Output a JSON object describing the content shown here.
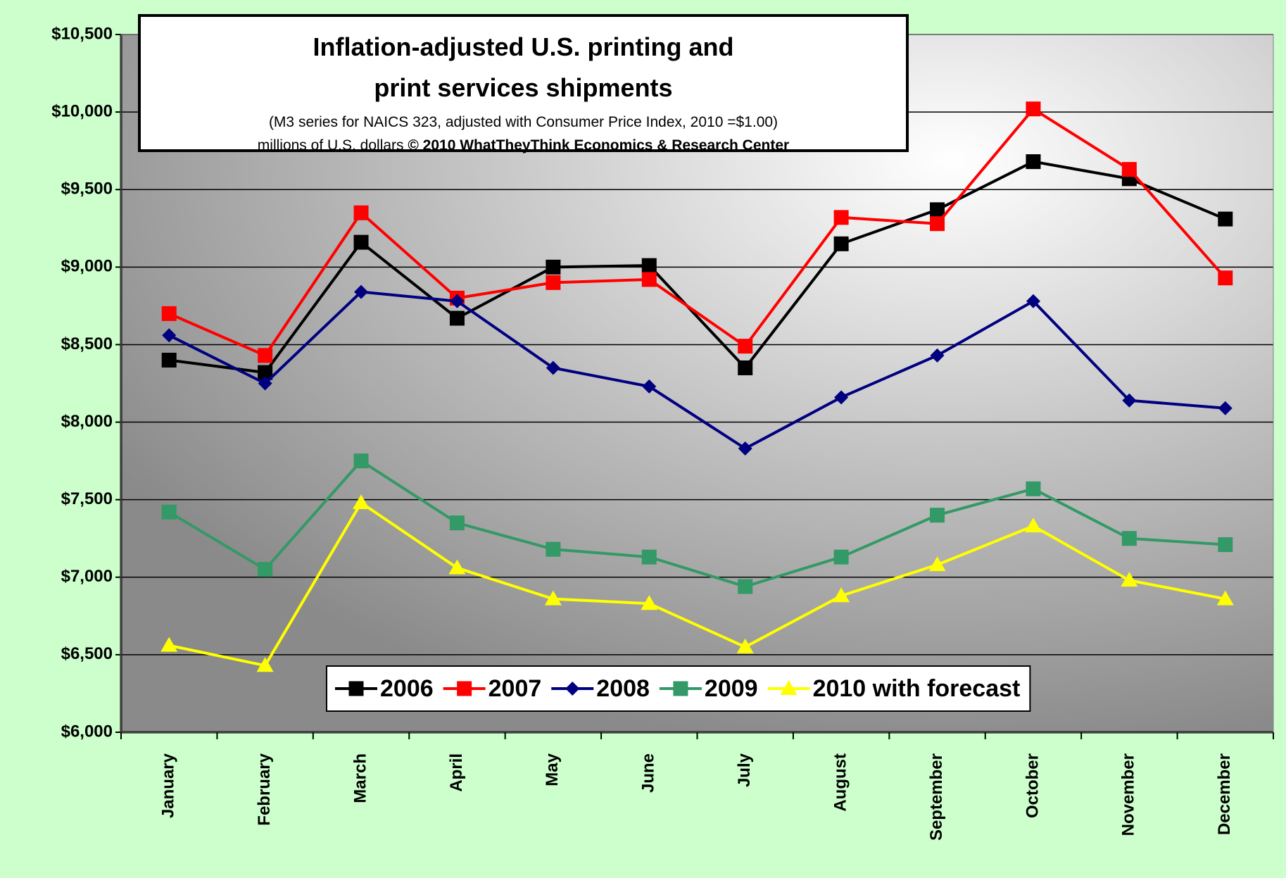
{
  "chart_data": {
    "type": "line",
    "title": "Inflation-adjusted U.S. printing and print services shipments",
    "subtitle": "(M3 series for NAICS 323, adjusted with Consumer Price Index, 2010 =$1.00)",
    "note": "millions of U.S. dollars",
    "source": "© 2010 WhatTheyThink Economics & Research Center",
    "categories": [
      "January",
      "February",
      "March",
      "April",
      "May",
      "June",
      "July",
      "August",
      "September",
      "October",
      "November",
      "December"
    ],
    "series": [
      {
        "name": "2006",
        "color": "#000000",
        "marker": "square",
        "values": [
          8400,
          8320,
          9160,
          8670,
          9000,
          9010,
          8350,
          9150,
          9370,
          9680,
          9570,
          9310
        ]
      },
      {
        "name": "2007",
        "color": "#ff0000",
        "marker": "square",
        "values": [
          8700,
          8430,
          9350,
          8800,
          8900,
          8920,
          8490,
          9320,
          9280,
          10020,
          9630,
          8930
        ]
      },
      {
        "name": "2008",
        "color": "#000080",
        "marker": "diamond",
        "values": [
          8560,
          8250,
          8840,
          8780,
          8350,
          8230,
          7830,
          8160,
          8430,
          8780,
          8140,
          8090
        ]
      },
      {
        "name": "2009",
        "color": "#339966",
        "marker": "square",
        "values": [
          7420,
          7050,
          7750,
          7350,
          7180,
          7130,
          6940,
          7130,
          7400,
          7570,
          7250,
          7210
        ]
      },
      {
        "name": "2010 with forecast",
        "color": "#ffff00",
        "marker": "triangle",
        "values": [
          6560,
          6430,
          7480,
          7060,
          6860,
          6830,
          6550,
          6880,
          7080,
          7330,
          6980,
          6860
        ]
      }
    ],
    "ylim": [
      6000,
      10500
    ],
    "yticks": [
      {
        "value": 6000,
        "label": "$6,000"
      },
      {
        "value": 6500,
        "label": "$6,500"
      },
      {
        "value": 7000,
        "label": "$7,000"
      },
      {
        "value": 7500,
        "label": "$7,500"
      },
      {
        "value": 8000,
        "label": "$8,000"
      },
      {
        "value": 8500,
        "label": "$8,500"
      },
      {
        "value": 9000,
        "label": "$9,000"
      },
      {
        "value": 9500,
        "label": "$9,500"
      },
      {
        "value": 10000,
        "label": "$10,000"
      },
      {
        "value": 10500,
        "label": "$10,500"
      }
    ],
    "grid": true,
    "legend": "bottom"
  }
}
